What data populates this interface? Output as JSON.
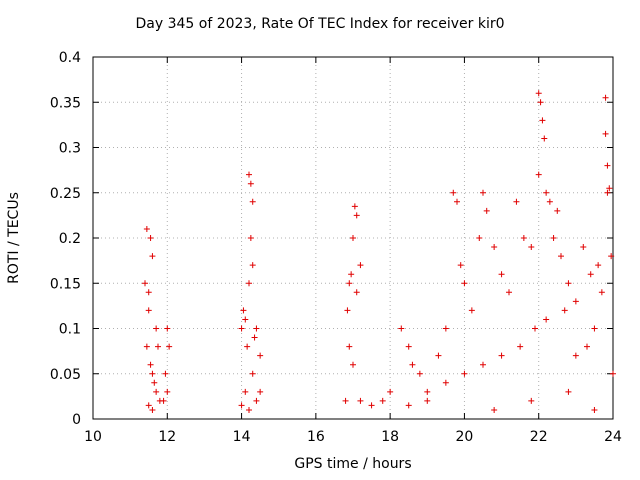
{
  "chart_data": {
    "type": "scatter",
    "title": "Day 345 of 2023, Rate Of TEC Index for receiver kir0",
    "xlabel": "GPS time / hours",
    "ylabel": "ROTI / TECUs",
    "xlim": [
      10,
      24
    ],
    "ylim": [
      0,
      0.4
    ],
    "x_ticks": [
      10,
      12,
      14,
      16,
      18,
      20,
      22,
      24
    ],
    "x_tick_labels": [
      "10",
      "12",
      "14",
      "16",
      "18",
      "20",
      "22",
      "24"
    ],
    "y_ticks": [
      0,
      0.05,
      0.1,
      0.15,
      0.2,
      0.25,
      0.3,
      0.35,
      0.4
    ],
    "y_tick_labels": [
      "0",
      "0.05",
      "0.1",
      "0.15",
      "0.2",
      "0.25",
      "0.3",
      "0.35",
      "0.4"
    ],
    "grid": true,
    "marker": "+",
    "marker_color": "#e00000",
    "series": [
      {
        "name": "ROTI",
        "points": [
          [
            11.45,
            0.21
          ],
          [
            11.55,
            0.2
          ],
          [
            11.6,
            0.18
          ],
          [
            11.4,
            0.15
          ],
          [
            11.5,
            0.14
          ],
          [
            11.5,
            0.12
          ],
          [
            11.7,
            0.1
          ],
          [
            11.45,
            0.08
          ],
          [
            11.55,
            0.06
          ],
          [
            11.6,
            0.05
          ],
          [
            11.65,
            0.04
          ],
          [
            11.7,
            0.03
          ],
          [
            11.8,
            0.02
          ],
          [
            11.5,
            0.015
          ],
          [
            11.6,
            0.01
          ],
          [
            11.9,
            0.02
          ],
          [
            12.0,
            0.1
          ],
          [
            12.05,
            0.08
          ],
          [
            11.95,
            0.05
          ],
          [
            12.0,
            0.03
          ],
          [
            11.75,
            0.08
          ],
          [
            14.2,
            0.27
          ],
          [
            14.25,
            0.26
          ],
          [
            14.3,
            0.24
          ],
          [
            14.25,
            0.2
          ],
          [
            14.3,
            0.17
          ],
          [
            14.2,
            0.15
          ],
          [
            14.05,
            0.12
          ],
          [
            14.1,
            0.11
          ],
          [
            14.0,
            0.1
          ],
          [
            14.15,
            0.08
          ],
          [
            14.4,
            0.1
          ],
          [
            14.5,
            0.07
          ],
          [
            14.3,
            0.05
          ],
          [
            14.1,
            0.03
          ],
          [
            14.4,
            0.02
          ],
          [
            14.2,
            0.01
          ],
          [
            14.5,
            0.03
          ],
          [
            14.0,
            0.015
          ],
          [
            14.35,
            0.09
          ],
          [
            17.05,
            0.235
          ],
          [
            17.1,
            0.225
          ],
          [
            17.0,
            0.2
          ],
          [
            16.95,
            0.16
          ],
          [
            16.9,
            0.15
          ],
          [
            17.2,
            0.17
          ],
          [
            17.1,
            0.14
          ],
          [
            16.85,
            0.12
          ],
          [
            16.9,
            0.08
          ],
          [
            17.0,
            0.06
          ],
          [
            16.8,
            0.02
          ],
          [
            17.2,
            0.02
          ],
          [
            17.5,
            0.015
          ],
          [
            17.8,
            0.02
          ],
          [
            18.0,
            0.03
          ],
          [
            18.3,
            0.1
          ],
          [
            18.5,
            0.08
          ],
          [
            18.6,
            0.06
          ],
          [
            18.8,
            0.05
          ],
          [
            19.0,
            0.03
          ],
          [
            19.3,
            0.07
          ],
          [
            19.5,
            0.1
          ],
          [
            19.7,
            0.25
          ],
          [
            19.8,
            0.24
          ],
          [
            19.9,
            0.17
          ],
          [
            20.0,
            0.15
          ],
          [
            20.2,
            0.12
          ],
          [
            20.4,
            0.2
          ],
          [
            20.5,
            0.25
          ],
          [
            20.6,
            0.23
          ],
          [
            20.8,
            0.19
          ],
          [
            21.0,
            0.16
          ],
          [
            21.2,
            0.14
          ],
          [
            21.4,
            0.24
          ],
          [
            21.6,
            0.2
          ],
          [
            21.8,
            0.19
          ],
          [
            22.0,
            0.36
          ],
          [
            22.05,
            0.35
          ],
          [
            22.1,
            0.33
          ],
          [
            22.15,
            0.31
          ],
          [
            22.0,
            0.27
          ],
          [
            22.2,
            0.25
          ],
          [
            22.3,
            0.24
          ],
          [
            22.5,
            0.23
          ],
          [
            22.4,
            0.2
          ],
          [
            22.6,
            0.18
          ],
          [
            22.8,
            0.15
          ],
          [
            23.0,
            0.13
          ],
          [
            23.2,
            0.19
          ],
          [
            23.4,
            0.16
          ],
          [
            23.6,
            0.17
          ],
          [
            23.8,
            0.355
          ],
          [
            23.8,
            0.315
          ],
          [
            23.85,
            0.28
          ],
          [
            23.9,
            0.255
          ],
          [
            23.85,
            0.25
          ],
          [
            23.95,
            0.18
          ],
          [
            23.7,
            0.14
          ],
          [
            23.5,
            0.1
          ],
          [
            23.3,
            0.08
          ],
          [
            23.0,
            0.07
          ],
          [
            22.7,
            0.12
          ],
          [
            22.2,
            0.11
          ],
          [
            21.9,
            0.1
          ],
          [
            21.5,
            0.08
          ],
          [
            21.0,
            0.07
          ],
          [
            20.5,
            0.06
          ],
          [
            20.0,
            0.05
          ],
          [
            19.5,
            0.04
          ],
          [
            19.0,
            0.02
          ],
          [
            18.5,
            0.015
          ],
          [
            20.8,
            0.01
          ],
          [
            21.8,
            0.02
          ],
          [
            22.8,
            0.03
          ],
          [
            23.5,
            0.01
          ],
          [
            24.0,
            0.05
          ]
        ]
      }
    ]
  }
}
